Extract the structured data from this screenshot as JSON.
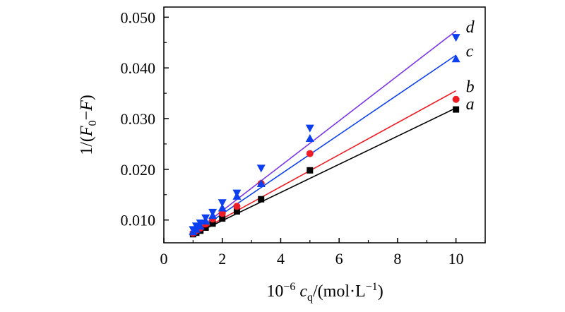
{
  "chart_data": {
    "type": "scatter",
    "title": "",
    "xlabel": "10⁻⁶ c_q/(mol·L⁻¹)",
    "xlabel_parts": {
      "prefix": "10",
      "exponent": "−6",
      "symbol": "c",
      "subscript": "q",
      "unit_open": "/(mol·L",
      "unit_exponent": "−1",
      "unit_close": ")"
    },
    "ylabel": "1/(F₀−F)",
    "ylabel_parts": {
      "prefix": "1/(",
      "f0": "F",
      "f0_sub": "0",
      "minus": "−",
      "f": "F",
      "close": ")"
    },
    "xlim": [
      0,
      11
    ],
    "ylim": [
      0.0055,
      0.052
    ],
    "xticks": [
      0,
      2,
      4,
      6,
      8,
      10
    ],
    "xtick_labels": [
      "0",
      "2",
      "4",
      "6",
      "8",
      "10"
    ],
    "yticks": [
      0.01,
      0.02,
      0.03,
      0.04,
      0.05
    ],
    "ytick_labels": [
      "0.010",
      "0.020",
      "0.030",
      "0.040",
      "0.050"
    ],
    "grid": false,
    "series": [
      {
        "name": "a",
        "color": "#000000",
        "marker": "square",
        "x": [
          1.0,
          1.11,
          1.25,
          1.43,
          1.67,
          2.0,
          2.5,
          3.33,
          5.0,
          10.0
        ],
        "y": [
          0.0072,
          0.0075,
          0.0079,
          0.0085,
          0.0093,
          0.0103,
          0.0117,
          0.0141,
          0.0198,
          0.0318
        ],
        "fit": {
          "x0": 1.0,
          "y0": 0.0071,
          "x1": 10.0,
          "y1": 0.0321
        }
      },
      {
        "name": "b",
        "color": "#ee1c25",
        "marker": "circle",
        "x": [
          1.0,
          1.11,
          1.25,
          1.43,
          1.67,
          2.0,
          2.5,
          3.33,
          5.0,
          10.0
        ],
        "y": [
          0.0074,
          0.0079,
          0.0084,
          0.0092,
          0.0102,
          0.0113,
          0.0127,
          0.0172,
          0.0231,
          0.0338
        ],
        "fit": {
          "x0": 1.0,
          "y0": 0.0071,
          "x1": 10.0,
          "y1": 0.0355
        }
      },
      {
        "name": "c",
        "color": "#0b3ff0",
        "marker": "triangle-up",
        "x": [
          1.0,
          1.11,
          1.25,
          1.43,
          1.67,
          2.0,
          2.5,
          3.33,
          5.0,
          10.0
        ],
        "y": [
          0.0077,
          0.0082,
          0.0088,
          0.0098,
          0.0109,
          0.0124,
          0.0147,
          0.0172,
          0.0261,
          0.0418
        ],
        "fit": {
          "x0": 1.0,
          "y0": 0.0073,
          "x1": 10.0,
          "y1": 0.0425
        }
      },
      {
        "name": "d",
        "color": "#0b3ff0",
        "line_color": "#7a35e8",
        "marker": "triangle-down",
        "x": [
          1.0,
          1.11,
          1.25,
          1.43,
          1.67,
          2.0,
          2.5,
          3.33,
          5.0,
          10.0
        ],
        "y": [
          0.0081,
          0.0088,
          0.0094,
          0.0104,
          0.0115,
          0.0134,
          0.0153,
          0.0202,
          0.0281,
          0.046
        ],
        "fit": {
          "x0": 1.0,
          "y0": 0.0074,
          "x1": 10.0,
          "y1": 0.0473
        }
      }
    ]
  }
}
